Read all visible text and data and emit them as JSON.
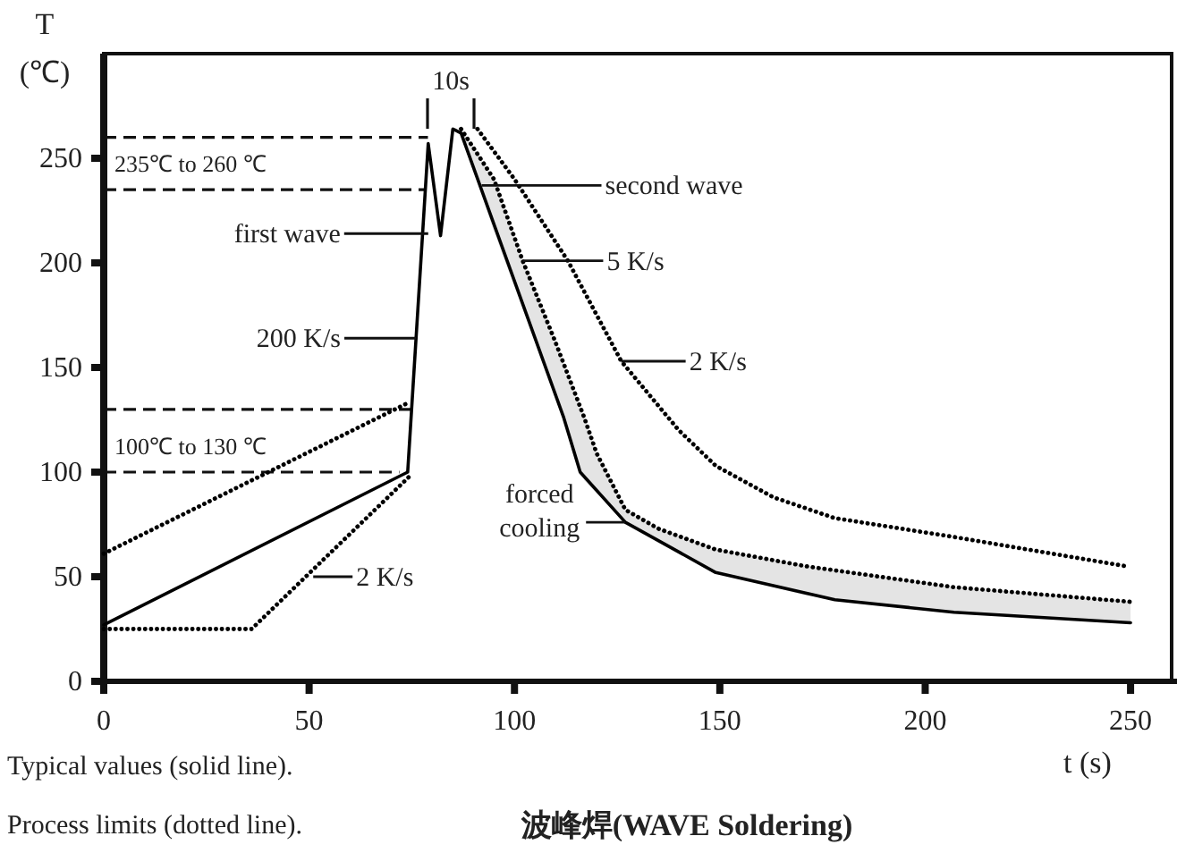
{
  "chart_data": {
    "type": "line",
    "title": "波峰焊(WAVE Soldering)",
    "xlabel": "t (s)",
    "ylabel": "T\n(℃)",
    "xlim": [
      0,
      260
    ],
    "ylim": [
      0,
      300
    ],
    "xticks": [
      0,
      50,
      100,
      150,
      200,
      250
    ],
    "yticks": [
      0,
      50,
      100,
      150,
      200,
      250
    ],
    "series": [
      {
        "color": "#000000",
        "line_style": "solid",
        "x": [
          0,
          74,
          79,
          82,
          85,
          87,
          112,
          116,
          127,
          149,
          178,
          207,
          250
        ],
        "values": [
          27,
          100,
          257,
          213,
          264,
          262,
          126,
          100,
          76,
          52,
          39,
          33,
          28
        ]
      },
      {
        "color": "#000000",
        "line_style": "dotted",
        "x": [
          87,
          95,
          102,
          110,
          117,
          120,
          127,
          135,
          149,
          171,
          207,
          250
        ],
        "values": [
          264,
          240,
          201,
          162,
          126,
          109,
          82,
          73,
          63,
          55,
          45,
          38
        ],
        "lower": [
          262,
          215,
          178,
          136,
          96,
          90,
          77,
          68,
          52,
          41,
          33,
          28
        ],
        "upper": [
          264,
          240,
          201,
          162,
          126,
          109,
          82,
          73,
          63,
          55,
          45,
          38
        ]
      },
      {
        "color": "#000000",
        "line_style": "dotted",
        "x": [
          91,
          100,
          113,
          126,
          140,
          149,
          163,
          178,
          207,
          249
        ],
        "values": [
          264,
          240,
          201,
          153,
          120,
          103,
          88,
          78,
          69,
          55
        ]
      },
      {
        "color": "#000000",
        "line_style": "dotted",
        "x": [
          0,
          74
        ],
        "values": [
          61,
          133
        ]
      },
      {
        "color": "#000000",
        "line_style": "dotted",
        "x": [
          0,
          36,
          75
        ],
        "values": [
          25,
          25,
          99
        ]
      }
    ],
    "ref_lines": [
      {
        "axis": "y",
        "value": 260,
        "line_style": "dashed"
      },
      {
        "axis": "y",
        "value": 235,
        "label": "235℃ to 260 ℃",
        "line_style": "dashed"
      },
      {
        "axis": "y",
        "value": 130,
        "line_style": "dashed"
      },
      {
        "axis": "y",
        "value": 100,
        "label": "100℃ to 130 ℃",
        "line_style": "dashed"
      }
    ],
    "annotations": [
      "10s",
      {
        "text": "first wave",
        "x": 79,
        "y": 214
      },
      {
        "text": "second wave",
        "x": 92,
        "y": 237
      },
      {
        "text": "5 K/s",
        "x": 102,
        "y": 201
      },
      {
        "text": "2 K/s",
        "x": 126,
        "y": 153
      },
      {
        "text": "200 K/s",
        "x": 76,
        "y": 164
      },
      {
        "text": "2 K/s",
        "x": 51,
        "y": 50
      },
      {
        "text": "forced\ncooling",
        "x": 127,
        "y": 76
      },
      "Typical values (solid line).",
      "Process limits (dotted line)."
    ]
  }
}
